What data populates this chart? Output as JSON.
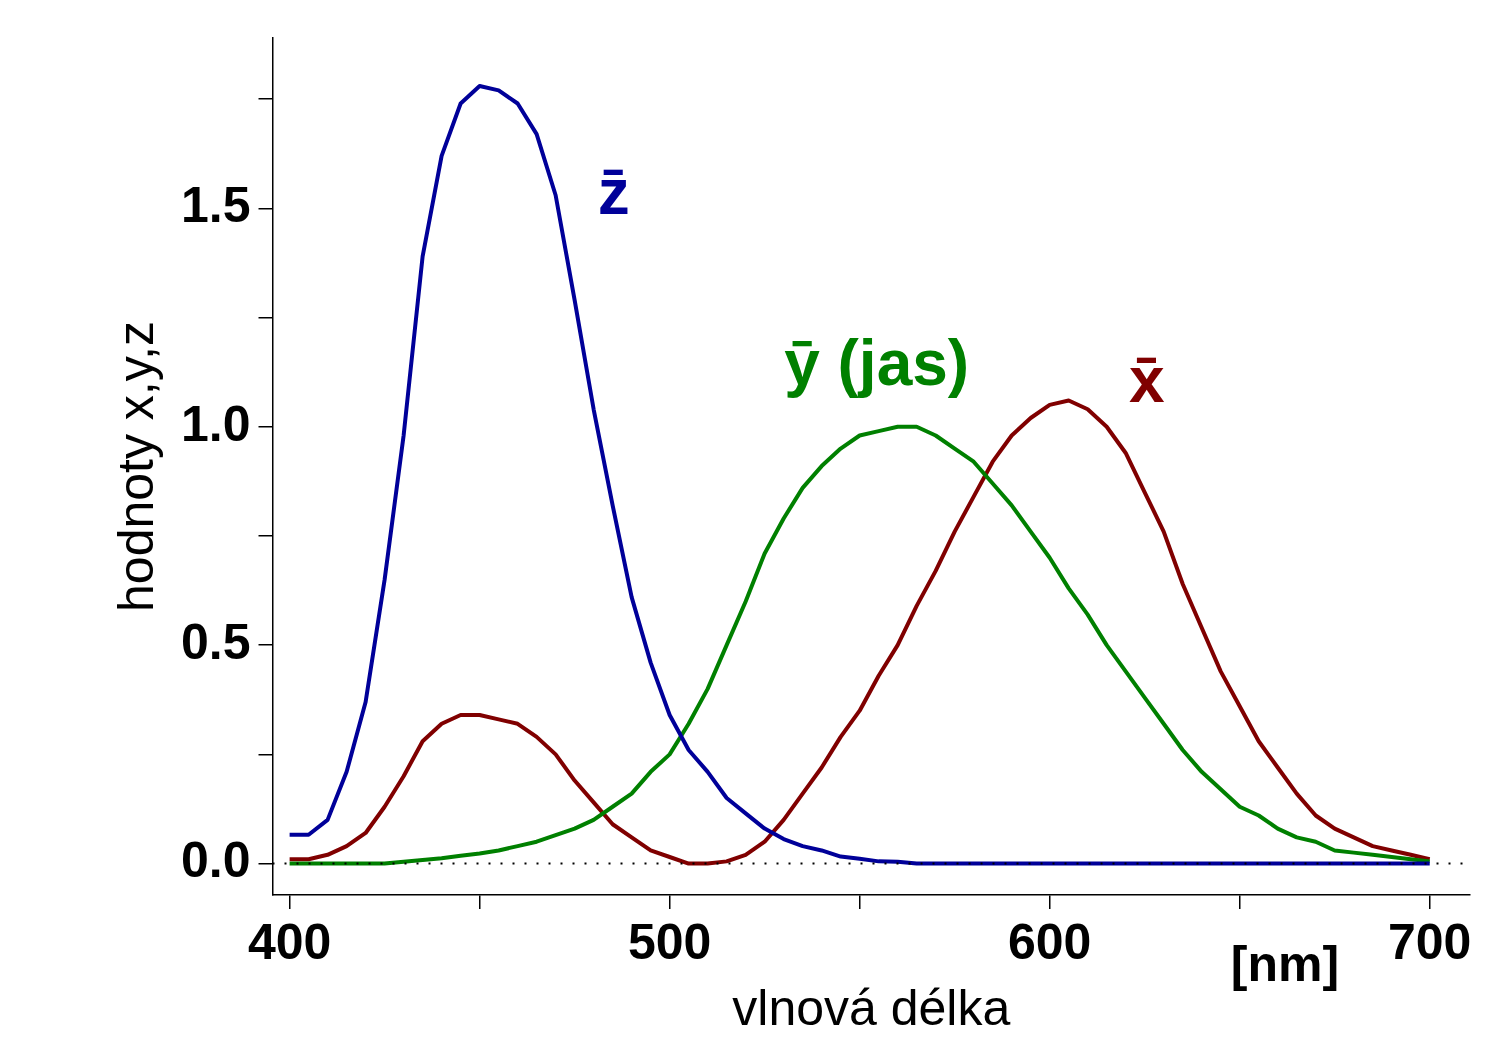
{
  "chart_data": {
    "type": "line",
    "xlabel": "vlnová délka",
    "ylabel": "hodnoty x,y,z",
    "x": [
      400,
      405,
      410,
      415,
      420,
      425,
      430,
      435,
      440,
      445,
      450,
      455,
      460,
      465,
      470,
      475,
      480,
      485,
      490,
      495,
      500,
      505,
      510,
      515,
      520,
      525,
      530,
      535,
      540,
      545,
      550,
      555,
      560,
      565,
      570,
      575,
      580,
      585,
      590,
      595,
      600,
      605,
      610,
      615,
      620,
      625,
      630,
      635,
      640,
      645,
      650,
      655,
      660,
      665,
      670,
      675,
      680,
      685,
      690,
      695,
      700
    ],
    "series": [
      {
        "name": "z̄",
        "color": "#000099",
        "values": [
          0.066,
          0.066,
          0.1,
          0.21,
          0.37,
          0.65,
          0.98,
          1.39,
          1.62,
          1.74,
          1.78,
          1.77,
          1.74,
          1.67,
          1.53,
          1.29,
          1.04,
          0.82,
          0.61,
          0.46,
          0.34,
          0.26,
          0.21,
          0.15,
          0.115,
          0.08,
          0.056,
          0.04,
          0.03,
          0.016,
          0.011,
          0.005,
          0.004,
          0,
          0,
          0,
          0,
          0,
          0,
          0,
          0,
          0,
          0,
          0,
          0,
          0,
          0,
          0,
          0,
          0,
          0,
          0,
          0,
          0,
          0,
          0,
          0,
          0,
          0,
          0,
          0
        ]
      },
      {
        "name": "ȳ (jas)",
        "color": "#008000",
        "values": [
          0,
          0,
          0,
          0,
          0,
          0,
          0.004,
          0.008,
          0.012,
          0.018,
          0.023,
          0.03,
          0.04,
          0.05,
          0.065,
          0.08,
          0.1,
          0.13,
          0.16,
          0.21,
          0.25,
          0.32,
          0.4,
          0.5,
          0.6,
          0.71,
          0.79,
          0.86,
          0.91,
          0.95,
          0.98,
          0.99,
          1,
          1,
          0.98,
          0.95,
          0.92,
          0.87,
          0.82,
          0.76,
          0.7,
          0.63,
          0.57,
          0.5,
          0.44,
          0.38,
          0.32,
          0.26,
          0.21,
          0.17,
          0.13,
          0.11,
          0.08,
          0.06,
          0.05,
          0.03,
          0.025,
          0.02,
          0.015,
          0.01,
          0.005
        ]
      },
      {
        "name": "x̄",
        "color": "#800000",
        "values": [
          0.01,
          0.01,
          0.02,
          0.04,
          0.07,
          0.13,
          0.2,
          0.28,
          0.32,
          0.34,
          0.34,
          0.33,
          0.32,
          0.29,
          0.25,
          0.19,
          0.14,
          0.09,
          0.06,
          0.03,
          0.015,
          0,
          0,
          0.005,
          0.02,
          0.05,
          0.1,
          0.16,
          0.22,
          0.29,
          0.35,
          0.43,
          0.5,
          0.59,
          0.67,
          0.76,
          0.84,
          0.92,
          0.98,
          1.02,
          1.05,
          1.06,
          1.04,
          1,
          0.94,
          0.85,
          0.76,
          0.64,
          0.54,
          0.44,
          0.36,
          0.28,
          0.22,
          0.16,
          0.11,
          0.08,
          0.06,
          0.04,
          0.03,
          0.02,
          0.01
        ]
      }
    ],
    "xlim": [
      395.5,
      710.6
    ],
    "xticks": [
      400,
      {
        "value": 450,
        "label": null
      },
      500,
      {
        "value": 550,
        "label": null
      },
      600,
      {
        "value": 650,
        "label": null
      },
      700
    ],
    "ylim": [
      -0.072,
      1.89
    ],
    "yticks": [
      {
        "value": 0,
        "label": "0.0"
      },
      {
        "value": 0.25,
        "label": null
      },
      {
        "value": 0.5,
        "label": "0.5"
      },
      {
        "value": 0.75,
        "label": null
      },
      {
        "value": 1,
        "label": "1.0"
      },
      {
        "value": 1.25,
        "label": null
      },
      {
        "value": 1.5,
        "label": "1.5"
      },
      {
        "value": 1.75,
        "label": null
      }
    ],
    "ref_lines": [
      {
        "axis": "y",
        "value": 0,
        "color": "#000000",
        "line_style": "dotted"
      }
    ],
    "annotations": [
      "[nm]"
    ],
    "grid": false,
    "legend": false,
    "marker": "none",
    "line_style": "solid"
  }
}
